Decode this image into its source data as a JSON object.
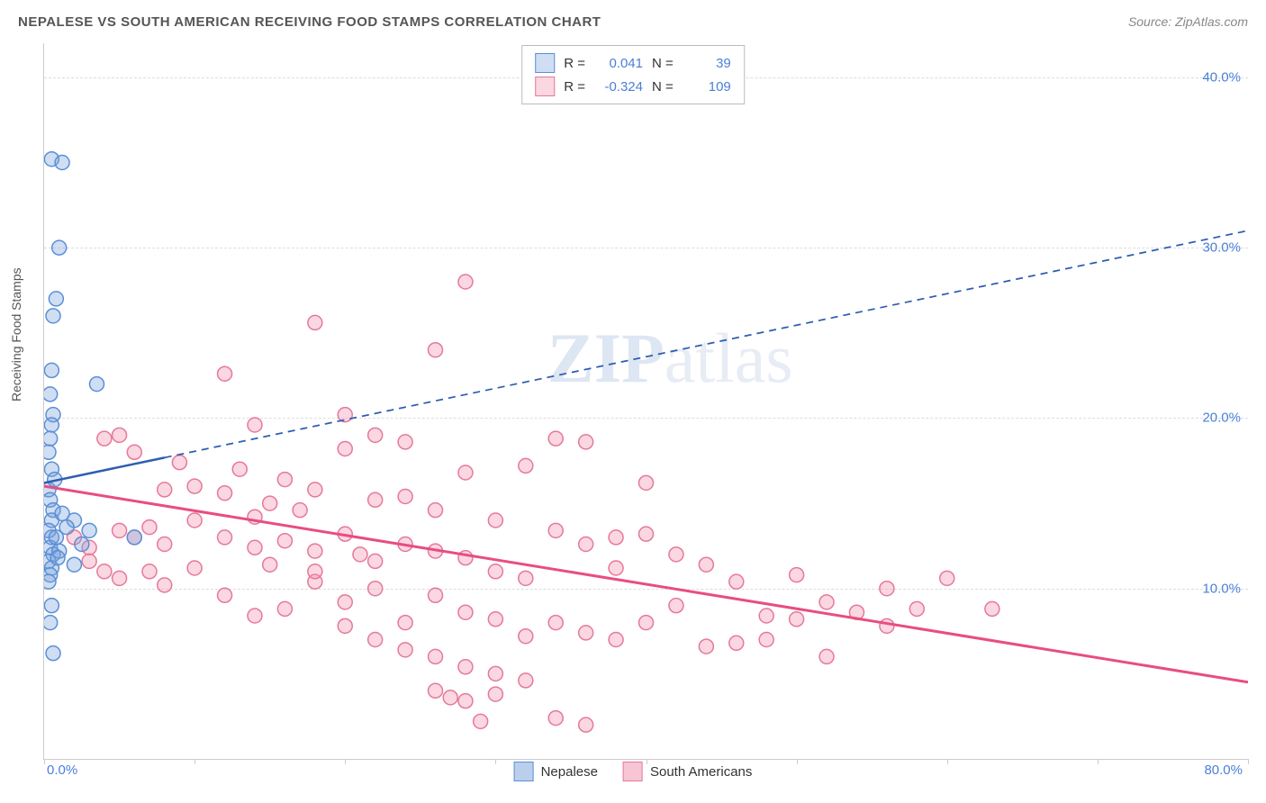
{
  "header": {
    "title": "NEPALESE VS SOUTH AMERICAN RECEIVING FOOD STAMPS CORRELATION CHART",
    "source": "Source: ZipAtlas.com"
  },
  "watermark": {
    "zip": "ZIP",
    "atlas": "atlas"
  },
  "chart": {
    "type": "scatter",
    "y_axis_title": "Receiving Food Stamps",
    "xlim": [
      0,
      80
    ],
    "ylim": [
      0,
      42
    ],
    "y_ticks": [
      10,
      20,
      30,
      40
    ],
    "y_tick_labels": [
      "10.0%",
      "20.0%",
      "30.0%",
      "40.0%"
    ],
    "x_tick_positions": [
      0,
      10,
      20,
      30,
      40,
      50,
      60,
      70,
      80
    ],
    "x_label_min": "0.0%",
    "x_label_max": "80.0%",
    "grid_color": "#dddddd",
    "background_color": "#ffffff",
    "series": {
      "nepalese": {
        "label": "Nepalese",
        "color_fill": "rgba(120,160,220,0.35)",
        "color_stroke": "#5a8fd6",
        "marker_radius": 8,
        "r_label": "R =",
        "r_value": "0.041",
        "n_label": "N =",
        "n_value": "39",
        "regression": {
          "x1": 0,
          "y1": 16.2,
          "x2": 80,
          "y2": 31.0,
          "solid_until_x": 8,
          "color": "#2e5eb0",
          "width": 2.5
        },
        "points": [
          [
            0.5,
            35.2
          ],
          [
            1.2,
            35.0
          ],
          [
            1.0,
            30.0
          ],
          [
            0.8,
            27.0
          ],
          [
            0.6,
            26.0
          ],
          [
            0.5,
            22.8
          ],
          [
            3.5,
            22.0
          ],
          [
            0.4,
            21.4
          ],
          [
            0.6,
            20.2
          ],
          [
            0.5,
            19.6
          ],
          [
            0.4,
            18.8
          ],
          [
            0.3,
            18.0
          ],
          [
            0.5,
            17.0
          ],
          [
            0.3,
            15.8
          ],
          [
            0.4,
            15.2
          ],
          [
            0.6,
            14.6
          ],
          [
            2.0,
            14.0
          ],
          [
            0.5,
            14.0
          ],
          [
            3.0,
            13.4
          ],
          [
            0.3,
            13.4
          ],
          [
            6.0,
            13.0
          ],
          [
            2.5,
            12.6
          ],
          [
            0.5,
            13.0
          ],
          [
            0.4,
            12.4
          ],
          [
            0.6,
            12.0
          ],
          [
            0.3,
            11.6
          ],
          [
            0.5,
            11.2
          ],
          [
            2.0,
            11.4
          ],
          [
            0.4,
            10.8
          ],
          [
            0.3,
            10.4
          ],
          [
            0.5,
            9.0
          ],
          [
            0.4,
            8.0
          ],
          [
            0.6,
            6.2
          ],
          [
            1.5,
            13.6
          ],
          [
            1.0,
            12.2
          ],
          [
            1.2,
            14.4
          ],
          [
            0.8,
            13.0
          ],
          [
            0.9,
            11.8
          ],
          [
            0.7,
            16.4
          ]
        ]
      },
      "south_americans": {
        "label": "South Americans",
        "color_fill": "rgba(240,140,170,0.35)",
        "color_stroke": "#e6789c",
        "marker_radius": 8,
        "r_label": "R =",
        "r_value": "-0.324",
        "n_label": "N =",
        "n_value": "109",
        "regression": {
          "x1": 0,
          "y1": 16.0,
          "x2": 80,
          "y2": 4.5,
          "solid_until_x": 80,
          "color": "#e84d82",
          "width": 3
        },
        "points": [
          [
            28,
            28.0
          ],
          [
            18,
            25.6
          ],
          [
            26,
            24.0
          ],
          [
            12,
            22.6
          ],
          [
            5,
            19.0
          ],
          [
            4,
            18.8
          ],
          [
            6,
            18.0
          ],
          [
            9,
            17.4
          ],
          [
            14,
            19.6
          ],
          [
            20,
            20.2
          ],
          [
            20,
            18.2
          ],
          [
            22,
            19.0
          ],
          [
            24,
            18.6
          ],
          [
            13,
            17.0
          ],
          [
            16,
            16.4
          ],
          [
            10,
            16.0
          ],
          [
            8,
            15.8
          ],
          [
            12,
            15.6
          ],
          [
            18,
            15.8
          ],
          [
            15,
            15.0
          ],
          [
            22,
            15.2
          ],
          [
            17,
            14.6
          ],
          [
            14,
            14.2
          ],
          [
            10,
            14.0
          ],
          [
            7,
            13.6
          ],
          [
            5,
            13.4
          ],
          [
            6,
            13.0
          ],
          [
            8,
            12.6
          ],
          [
            12,
            13.0
          ],
          [
            14,
            12.4
          ],
          [
            16,
            12.8
          ],
          [
            18,
            12.2
          ],
          [
            20,
            13.2
          ],
          [
            21,
            12.0
          ],
          [
            24,
            12.6
          ],
          [
            26,
            12.2
          ],
          [
            28,
            11.8
          ],
          [
            30,
            11.0
          ],
          [
            32,
            10.6
          ],
          [
            15,
            11.4
          ],
          [
            10,
            11.2
          ],
          [
            7,
            11.0
          ],
          [
            4,
            11.0
          ],
          [
            3,
            12.4
          ],
          [
            2,
            13.0
          ],
          [
            3,
            11.6
          ],
          [
            5,
            10.6
          ],
          [
            8,
            10.2
          ],
          [
            18,
            10.4
          ],
          [
            22,
            10.0
          ],
          [
            26,
            9.6
          ],
          [
            20,
            9.2
          ],
          [
            16,
            8.8
          ],
          [
            14,
            8.4
          ],
          [
            28,
            8.6
          ],
          [
            24,
            8.0
          ],
          [
            30,
            8.2
          ],
          [
            32,
            7.2
          ],
          [
            36,
            18.6
          ],
          [
            34,
            13.4
          ],
          [
            38,
            7.0
          ],
          [
            40,
            13.2
          ],
          [
            42,
            9.0
          ],
          [
            44,
            6.6
          ],
          [
            46,
            10.4
          ],
          [
            48,
            8.4
          ],
          [
            50,
            10.8
          ],
          [
            52,
            9.2
          ],
          [
            54,
            8.6
          ],
          [
            56,
            10.0
          ],
          [
            58,
            8.8
          ],
          [
            38,
            13.0
          ],
          [
            36,
            7.4
          ],
          [
            34,
            8.0
          ],
          [
            26,
            4.0
          ],
          [
            27,
            3.6
          ],
          [
            28,
            3.4
          ],
          [
            30,
            3.8
          ],
          [
            32,
            4.6
          ],
          [
            34,
            2.4
          ],
          [
            36,
            2.0
          ],
          [
            29,
            2.2
          ],
          [
            40,
            8.0
          ],
          [
            42,
            12.0
          ],
          [
            60,
            10.6
          ],
          [
            56,
            7.8
          ],
          [
            52,
            6.0
          ],
          [
            48,
            7.0
          ],
          [
            44,
            11.4
          ],
          [
            38,
            11.2
          ],
          [
            46,
            6.8
          ],
          [
            50,
            8.2
          ],
          [
            36,
            12.6
          ],
          [
            40,
            16.2
          ],
          [
            28,
            16.8
          ],
          [
            30,
            14.0
          ],
          [
            32,
            17.2
          ],
          [
            34,
            18.8
          ],
          [
            26,
            14.6
          ],
          [
            24,
            15.4
          ],
          [
            22,
            11.6
          ],
          [
            18,
            11.0
          ],
          [
            63,
            8.8
          ],
          [
            20,
            7.8
          ],
          [
            22,
            7.0
          ],
          [
            24,
            6.4
          ],
          [
            26,
            6.0
          ],
          [
            28,
            5.4
          ],
          [
            30,
            5.0
          ],
          [
            12,
            9.6
          ]
        ]
      }
    },
    "legend_bottom": [
      {
        "label": "Nepalese",
        "fill": "rgba(120,160,220,0.5)",
        "stroke": "#5a8fd6"
      },
      {
        "label": "South Americans",
        "fill": "rgba(240,140,170,0.5)",
        "stroke": "#e6789c"
      }
    ]
  }
}
